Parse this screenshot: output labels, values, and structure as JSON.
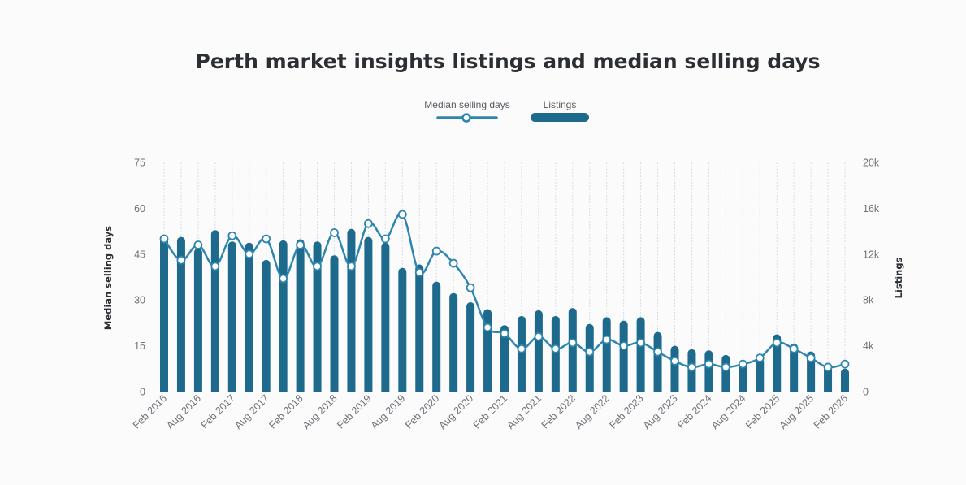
{
  "chart_data": {
    "type": "bar",
    "title": "Perth market insights listings and median selling days",
    "legend": {
      "placement": "top-center",
      "entries": [
        {
          "name": "Median selling days",
          "type": "line"
        },
        {
          "name": "Listings",
          "type": "bar"
        }
      ]
    },
    "ylabel_left": "Median selling days",
    "ylabel_right": "Listings",
    "ylim_left": [
      0,
      75
    ],
    "ylim_right": [
      0,
      20000
    ],
    "yticks_left": [
      "0",
      "15",
      "30",
      "45",
      "60",
      "75"
    ],
    "yticks_right": [
      "0",
      "4k",
      "8k",
      "12k",
      "16k",
      "20k"
    ],
    "x_tick_labels": [
      "Feb 2016",
      "Aug 2016",
      "Feb 2017",
      "Aug 2017",
      "Feb 2018",
      "Aug 2018",
      "Feb 2019",
      "Aug 2019",
      "Feb 2020",
      "Aug 2020",
      "Feb 2021",
      "Aug 2021",
      "Feb 2022",
      "Aug 2022",
      "Feb 2023",
      "Aug 2023",
      "Feb 2024",
      "Aug 2024",
      "Feb 2025",
      "Aug 2025",
      "Feb 2026"
    ],
    "x": [
      "Feb 2016",
      "May 2016",
      "Aug 2016",
      "Nov 2016",
      "Feb 2017",
      "May 2017",
      "Aug 2017",
      "Nov 2017",
      "Feb 2018",
      "May 2018",
      "Aug 2018",
      "Nov 2018",
      "Feb 2019",
      "May 2019",
      "Aug 2019",
      "Nov 2019",
      "Feb 2020",
      "May 2020",
      "Aug 2020",
      "Nov 2020",
      "Feb 2021",
      "May 2021",
      "Aug 2021",
      "Nov 2021",
      "Feb 2022",
      "May 2022",
      "Aug 2022",
      "Nov 2022",
      "Feb 2023",
      "May 2023",
      "Aug 2023",
      "Nov 2023",
      "Feb 2024",
      "May 2024",
      "Aug 2024",
      "Nov 2024",
      "Feb 2025",
      "May 2025",
      "Aug 2025",
      "Nov 2025",
      "Feb 2026"
    ],
    "series": [
      {
        "name": "Listings",
        "type": "bar",
        "axis": "right",
        "color": "#1e6a8d",
        "values": [
          13500,
          13500,
          12500,
          14100,
          13100,
          13000,
          11500,
          13200,
          13300,
          13100,
          11900,
          14200,
          13500,
          13000,
          10800,
          11100,
          9600,
          8600,
          7800,
          7200,
          5800,
          6600,
          7100,
          6600,
          7300,
          5900,
          6500,
          6200,
          6500,
          5200,
          4000,
          3700,
          3600,
          3200,
          2700,
          3000,
          5000,
          4200,
          3500,
          2400,
          2000
        ]
      },
      {
        "name": "Median selling days",
        "type": "line",
        "axis": "left",
        "color": "#2e86ae",
        "values": [
          50,
          43,
          48,
          41,
          51,
          45,
          50,
          37,
          48,
          41,
          52,
          41,
          55,
          50,
          58,
          39,
          46,
          42,
          34,
          21,
          19,
          14,
          18,
          14,
          16,
          13,
          17,
          15,
          16,
          13,
          10,
          8,
          9,
          8,
          9,
          11,
          16,
          14,
          11,
          8,
          9
        ]
      }
    ]
  },
  "colors": {
    "bar": "#1e6a8d",
    "line": "#2e86ae",
    "marker_fill": "#ffffff",
    "grid": "#d9dcdf",
    "title": "#2b2f33"
  }
}
